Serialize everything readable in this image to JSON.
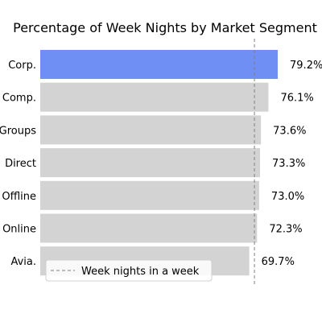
{
  "chart_data": {
    "type": "bar",
    "orientation": "horizontal",
    "title": "Percentage of Week Nights by Market Segment",
    "xlabel": "",
    "ylabel": "",
    "categories": [
      "Corp.",
      "Comp.",
      "Groups",
      "Direct",
      "Offline",
      "Online",
      "Avia."
    ],
    "values": [
      79.2,
      76.1,
      73.6,
      73.3,
      73.0,
      72.3,
      69.7
    ],
    "value_labels": [
      "79.2%",
      "76.1%",
      "73.6%",
      "73.3%",
      "73.0%",
      "72.3%",
      "69.7%"
    ],
    "xlim": [
      0,
      100
    ],
    "highlight_index": 0,
    "colors": {
      "highlight": "#6f8ff5",
      "bar": "#d3d3d3",
      "reference": "#808080"
    },
    "reference_line": {
      "value": 71.43,
      "label": "Week nights in a week",
      "style": "dashed"
    },
    "legend": {
      "position": "lower-left",
      "entries": [
        "Week nights in a week"
      ]
    },
    "grid": false
  }
}
